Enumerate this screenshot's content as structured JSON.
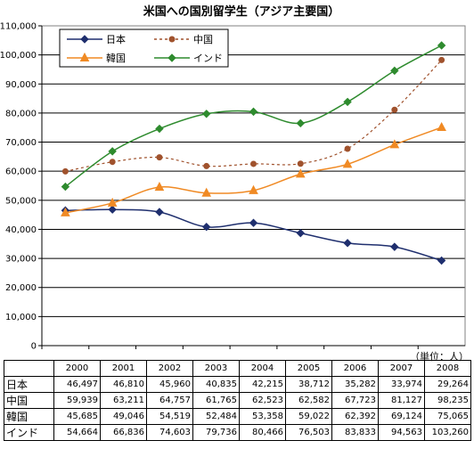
{
  "chart_data": {
    "type": "line",
    "title": "米国への国別留学生（アジア主要国）",
    "categories": [
      "2000",
      "2001",
      "2002",
      "2003",
      "2004",
      "2005",
      "2006",
      "2007",
      "2008"
    ],
    "ylim": [
      0,
      110000
    ],
    "yticks": [
      "0",
      "10,000",
      "20,000",
      "30,000",
      "40,000",
      "50,000",
      "60,000",
      "70,000",
      "80,000",
      "90,000",
      "100,000",
      "110,000"
    ],
    "legend_position": "top-left",
    "grid": true,
    "unit": "（単位：人）",
    "series": [
      {
        "name": "日本",
        "color": "#1f2f6e",
        "marker": "diamond",
        "dash": "solid",
        "values": [
          46497,
          46810,
          45960,
          40835,
          42215,
          38712,
          35282,
          33974,
          29264
        ],
        "labels": [
          "46,497",
          "46,810",
          "45,960",
          "40,835",
          "42,215",
          "38,712",
          "35,282",
          "33,974",
          "29,264"
        ]
      },
      {
        "name": "中国",
        "color": "#a0522d",
        "marker": "circle",
        "dash": "dashed",
        "values": [
          59939,
          63211,
          64757,
          61765,
          62523,
          62582,
          67723,
          81127,
          98235
        ],
        "labels": [
          "59,939",
          "63,211",
          "64,757",
          "61,765",
          "62,523",
          "62,582",
          "67,723",
          "81,127",
          "98,235"
        ]
      },
      {
        "name": "韓国",
        "color": "#f08a24",
        "marker": "triangle",
        "dash": "solid",
        "values": [
          45685,
          49046,
          54519,
          52484,
          53358,
          59022,
          62392,
          69124,
          75065
        ],
        "labels": [
          "45,685",
          "49,046",
          "54,519",
          "52,484",
          "53,358",
          "59,022",
          "62,392",
          "69,124",
          "75,065"
        ]
      },
      {
        "name": "インド",
        "color": "#2e8b2e",
        "marker": "diamond",
        "dash": "solid",
        "values": [
          54664,
          66836,
          74603,
          79736,
          80466,
          76503,
          83833,
          94563,
          103260
        ],
        "labels": [
          "54,664",
          "66,836",
          "74,603",
          "79,736",
          "80,466",
          "76,503",
          "83,833",
          "94,563",
          "103,260"
        ]
      }
    ]
  }
}
